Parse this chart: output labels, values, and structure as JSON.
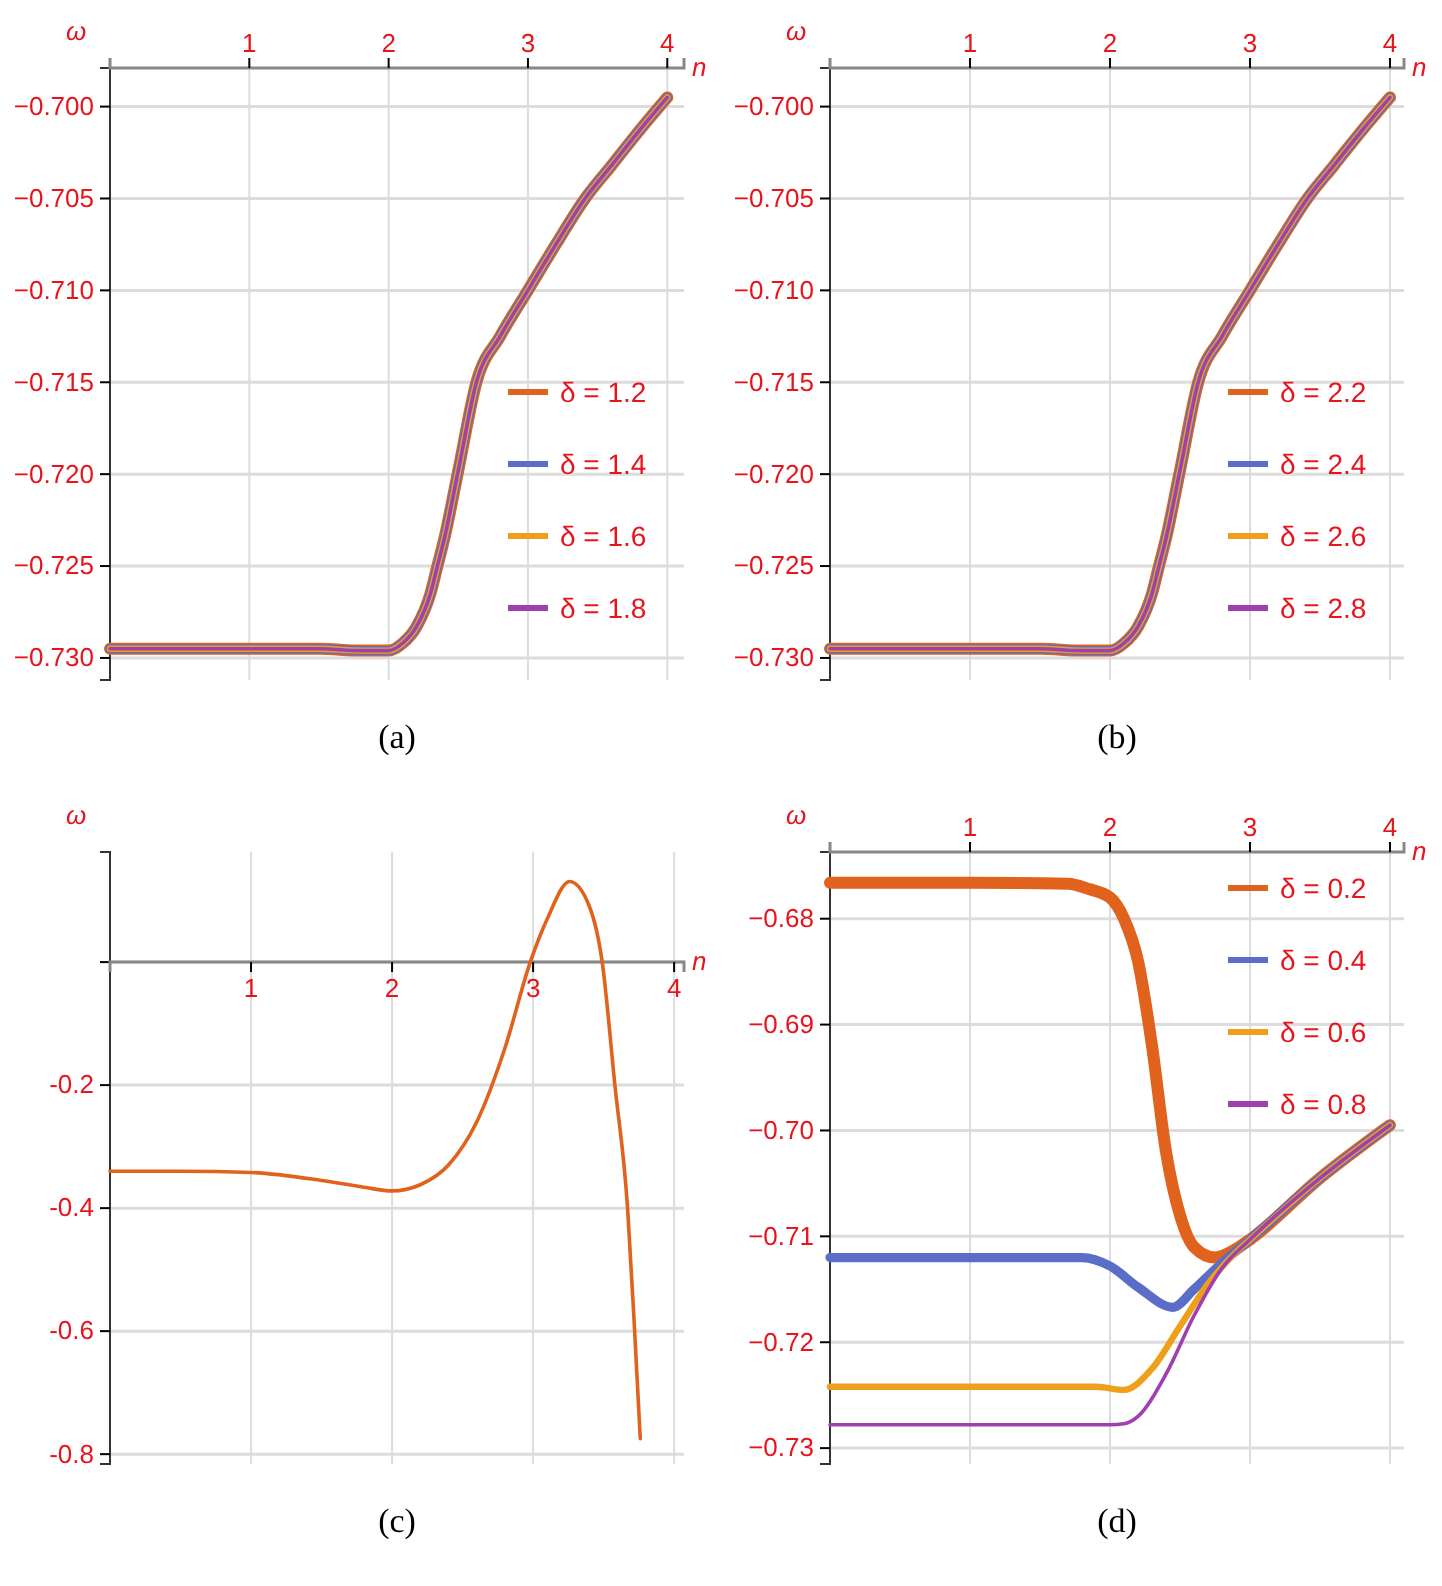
{
  "chart_data": [
    {
      "type": "line",
      "xlabel": "n",
      "ylabel": "ω",
      "annotations": [
        "(a)"
      ],
      "xlim": [
        0,
        4.12
      ],
      "ylim": [
        -0.7312,
        -0.6979
      ],
      "xticks": [
        1,
        2,
        3,
        4
      ],
      "yticks": [
        {
          "value": -0.7,
          "label": "−0.700"
        },
        {
          "value": -0.705,
          "label": "−0.705"
        },
        {
          "value": -0.71,
          "label": "−0.710"
        },
        {
          "value": -0.715,
          "label": "−0.715"
        },
        {
          "value": -0.72,
          "label": "−0.720"
        },
        {
          "value": -0.725,
          "label": "−0.725"
        },
        {
          "value": -0.73,
          "label": "−0.730"
        }
      ],
      "grid": true,
      "legend": "bottom right",
      "line_style": "solid",
      "marker": "none",
      "x": [
        0,
        0.5,
        1,
        1.5,
        1.8,
        2,
        2.1,
        2.2,
        2.3,
        2.35,
        2.4,
        2.5,
        2.63,
        2.8,
        3,
        3.2,
        3.41,
        3.6,
        3.8,
        4
      ],
      "series": [
        {
          "name": "δ = 1.2",
          "color": "#e0621c",
          "values": [
            -0.7295,
            -0.7295,
            -0.7295,
            -0.7295,
            -0.7296,
            -0.7296,
            -0.7292,
            -0.7283,
            -0.7265,
            -0.725,
            -0.7235,
            -0.7198,
            -0.715,
            -0.7125,
            -0.71,
            -0.7075,
            -0.705,
            -0.7032,
            -0.7013,
            -0.6995
          ]
        },
        {
          "name": "δ = 1.4",
          "color": "#5a6ec8",
          "values": [
            -0.7295,
            -0.7295,
            -0.7295,
            -0.7295,
            -0.7296,
            -0.7296,
            -0.7292,
            -0.7283,
            -0.7265,
            -0.725,
            -0.7235,
            -0.7198,
            -0.715,
            -0.7125,
            -0.71,
            -0.7075,
            -0.705,
            -0.7032,
            -0.7013,
            -0.6995
          ]
        },
        {
          "name": "δ = 1.6",
          "color": "#eea01a",
          "values": [
            -0.7295,
            -0.7295,
            -0.7295,
            -0.7295,
            -0.7296,
            -0.7296,
            -0.7292,
            -0.7283,
            -0.7265,
            -0.725,
            -0.7235,
            -0.7198,
            -0.715,
            -0.7125,
            -0.71,
            -0.7075,
            -0.705,
            -0.7032,
            -0.7013,
            -0.6995
          ]
        },
        {
          "name": "δ = 1.8",
          "color": "#a040b0",
          "values": [
            -0.7295,
            -0.7295,
            -0.7295,
            -0.7295,
            -0.7296,
            -0.7296,
            -0.7292,
            -0.7283,
            -0.7265,
            -0.725,
            -0.7235,
            -0.7198,
            -0.715,
            -0.7125,
            -0.71,
            -0.7075,
            -0.705,
            -0.7032,
            -0.7013,
            -0.6995
          ]
        }
      ]
    },
    {
      "type": "line",
      "xlabel": "n",
      "ylabel": "ω",
      "annotations": [
        "(b)"
      ],
      "xlim": [
        0,
        4.1
      ],
      "ylim": [
        -0.7312,
        -0.6979
      ],
      "xticks": [
        1,
        2,
        3,
        4
      ],
      "yticks": [
        {
          "value": -0.7,
          "label": "−0.700"
        },
        {
          "value": -0.705,
          "label": "−0.705"
        },
        {
          "value": -0.71,
          "label": "−0.710"
        },
        {
          "value": -0.715,
          "label": "−0.715"
        },
        {
          "value": -0.72,
          "label": "−0.720"
        },
        {
          "value": -0.725,
          "label": "−0.725"
        },
        {
          "value": -0.73,
          "label": "−0.730"
        }
      ],
      "grid": true,
      "legend": "bottom right",
      "line_style": "solid",
      "marker": "none",
      "x": [
        0,
        0.5,
        1,
        1.5,
        1.8,
        2,
        2.1,
        2.2,
        2.3,
        2.35,
        2.4,
        2.5,
        2.63,
        2.8,
        3,
        3.2,
        3.41,
        3.6,
        3.8,
        4
      ],
      "series": [
        {
          "name": "δ = 2.2",
          "color": "#e0621c",
          "values": [
            -0.7295,
            -0.7295,
            -0.7295,
            -0.7295,
            -0.7296,
            -0.7296,
            -0.7292,
            -0.7283,
            -0.7265,
            -0.725,
            -0.7235,
            -0.7198,
            -0.715,
            -0.7125,
            -0.71,
            -0.7075,
            -0.705,
            -0.7032,
            -0.7013,
            -0.6995
          ]
        },
        {
          "name": "δ = 2.4",
          "color": "#5a6ec8",
          "values": [
            -0.7295,
            -0.7295,
            -0.7295,
            -0.7295,
            -0.7296,
            -0.7296,
            -0.7292,
            -0.7283,
            -0.7265,
            -0.725,
            -0.7235,
            -0.7198,
            -0.715,
            -0.7125,
            -0.71,
            -0.7075,
            -0.705,
            -0.7032,
            -0.7013,
            -0.6995
          ]
        },
        {
          "name": "δ = 2.6",
          "color": "#eea01a",
          "values": [
            -0.7295,
            -0.7295,
            -0.7295,
            -0.7295,
            -0.7296,
            -0.7296,
            -0.7292,
            -0.7283,
            -0.7265,
            -0.725,
            -0.7235,
            -0.7198,
            -0.715,
            -0.7125,
            -0.71,
            -0.7075,
            -0.705,
            -0.7032,
            -0.7013,
            -0.6995
          ]
        },
        {
          "name": "δ = 2.8",
          "color": "#a040b0",
          "values": [
            -0.7295,
            -0.7295,
            -0.7295,
            -0.7295,
            -0.7296,
            -0.7296,
            -0.7292,
            -0.7283,
            -0.7265,
            -0.725,
            -0.7235,
            -0.7198,
            -0.715,
            -0.7125,
            -0.71,
            -0.7075,
            -0.705,
            -0.7032,
            -0.7013,
            -0.6995
          ]
        }
      ]
    },
    {
      "type": "line",
      "xlabel": "n",
      "ylabel": "ω",
      "annotations": [
        "(c)"
      ],
      "xlim": [
        0,
        4.07
      ],
      "ylim": [
        -0.816,
        0.179
      ],
      "xticks": [
        1,
        2,
        3,
        4
      ],
      "yticks": [
        {
          "value": 0,
          "label": null
        },
        {
          "value": -0.2,
          "label": "-0.2"
        },
        {
          "value": -0.4,
          "label": "-0.4"
        },
        {
          "value": -0.6,
          "label": "-0.6"
        },
        {
          "value": -0.8,
          "label": "-0.8"
        }
      ],
      "grid": true,
      "legend": false,
      "line_style": "solid",
      "marker": "none",
      "x": [
        0,
        0.5,
        1,
        1.5,
        1.8,
        2,
        2.2,
        2.4,
        2.6,
        2.8,
        2.98,
        3.1,
        3.26,
        3.4,
        3.49,
        3.58,
        3.67,
        3.72,
        3.76
      ],
      "series": [
        {
          "color": "#e0621c",
          "values": [
            -0.34,
            -0.34,
            -0.342,
            -0.355,
            -0.366,
            -0.372,
            -0.362,
            -0.33,
            -0.26,
            -0.14,
            0,
            0.07,
            0.131,
            0.09,
            0,
            -0.2,
            -0.4,
            -0.6,
            -0.775
          ]
        }
      ]
    },
    {
      "type": "line",
      "xlabel": "n",
      "ylabel": "ω",
      "annotations": [
        "(d)"
      ],
      "xlim": [
        0,
        4.1
      ],
      "ylim": [
        -0.7315,
        -0.6737
      ],
      "xticks": [
        1,
        2,
        3,
        4
      ],
      "yticks": [
        {
          "value": -0.68,
          "label": "−0.68"
        },
        {
          "value": -0.69,
          "label": "−0.69"
        },
        {
          "value": -0.7,
          "label": "−0.70"
        },
        {
          "value": -0.71,
          "label": "−0.71"
        },
        {
          "value": -0.72,
          "label": "−0.72"
        },
        {
          "value": -0.73,
          "label": "−0.73"
        }
      ],
      "grid": true,
      "legend": "top right",
      "line_style": "solid",
      "marker": "none",
      "series": [
        {
          "name": "δ = 0.2",
          "color": "#e0621c",
          "x": [
            0,
            1,
            1.7,
            1.85,
            2,
            2.1,
            2.2,
            2.3,
            2.4,
            2.5,
            2.6,
            2.75,
            2.9,
            3,
            3.5,
            4
          ],
          "values": [
            -0.6766,
            -0.6766,
            -0.6767,
            -0.6772,
            -0.678,
            -0.68,
            -0.684,
            -0.692,
            -0.702,
            -0.708,
            -0.711,
            -0.712,
            -0.7112,
            -0.7103,
            -0.7045,
            -0.6995
          ]
        },
        {
          "name": "δ = 0.4",
          "color": "#5a6ec8",
          "x": [
            0,
            1,
            1.8,
            2,
            2.2,
            2.45,
            2.6,
            2.8,
            3,
            3.5,
            4
          ],
          "values": [
            -0.712,
            -0.712,
            -0.712,
            -0.7128,
            -0.7148,
            -0.7167,
            -0.715,
            -0.7125,
            -0.7103,
            -0.7045,
            -0.6995
          ]
        },
        {
          "name": "δ = 0.6",
          "color": "#eea01a",
          "x": [
            0,
            1,
            1.9,
            2.1,
            2.3,
            2.5,
            2.7,
            2.9,
            3,
            3.5,
            4
          ],
          "values": [
            -0.7242,
            -0.7242,
            -0.7242,
            -0.7245,
            -0.7225,
            -0.7185,
            -0.7145,
            -0.7115,
            -0.7103,
            -0.7045,
            -0.6995
          ]
        },
        {
          "name": "δ = 0.8",
          "color": "#a040b0",
          "x": [
            0,
            1,
            2,
            2.1,
            2.2,
            2.4,
            2.6,
            2.8,
            3,
            3.5,
            4
          ],
          "values": [
            -0.7278,
            -0.7278,
            -0.7278,
            -0.7277,
            -0.727,
            -0.723,
            -0.7175,
            -0.713,
            -0.7103,
            -0.7045,
            -0.6995
          ]
        }
      ]
    }
  ]
}
